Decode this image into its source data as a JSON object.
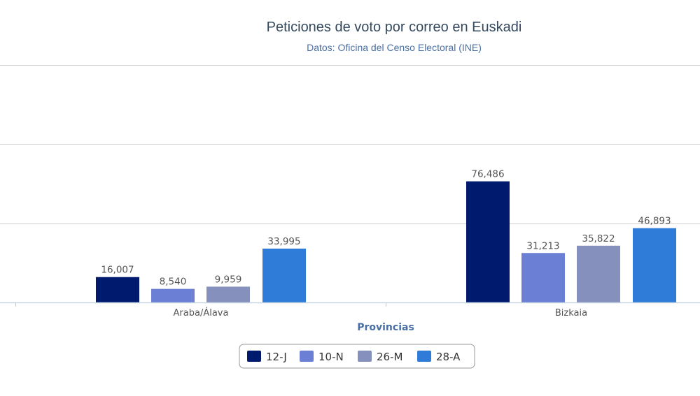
{
  "chart_data": {
    "type": "bar",
    "title": "Peticiones de voto por correo en Euskadi",
    "subtitle": "Datos: Oficina del Censo Electoral (INE)",
    "xlabel": "Provincias",
    "ylabel": "",
    "categories": [
      "Araba/Álava",
      "Bizkaia"
    ],
    "series": [
      {
        "name": "12-J",
        "color": "#001a6e",
        "values": [
          16007,
          76486
        ],
        "labels": [
          "16,007",
          "76,486"
        ]
      },
      {
        "name": "10-N",
        "color": "#6b7fd4",
        "values": [
          8540,
          31213
        ],
        "labels": [
          "8,540",
          "31,213"
        ]
      },
      {
        "name": "26-M",
        "color": "#8690bd",
        "values": [
          9959,
          35822
        ],
        "labels": [
          "9,959",
          "35,822"
        ]
      },
      {
        "name": "28-A",
        "color": "#2e7cd8",
        "values": [
          33995,
          46893
        ],
        "labels": [
          "33,995",
          "46,893"
        ]
      }
    ],
    "ylim": [
      0,
      150000
    ],
    "gridlines": [
      50000,
      100000,
      150000
    ],
    "grid": true,
    "legend_position": "bottom-center"
  }
}
